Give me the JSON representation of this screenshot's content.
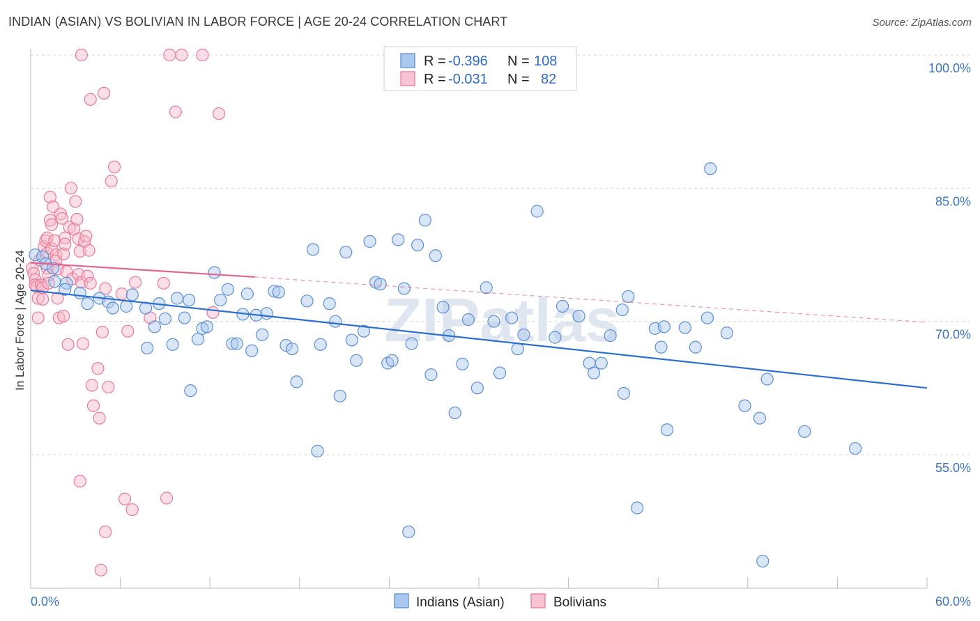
{
  "title": "INDIAN (ASIAN) VS BOLIVIAN IN LABOR FORCE | AGE 20-24 CORRELATION CHART",
  "source": "Source: ZipAtlas.com",
  "watermark": "ZIPatlas",
  "colors": {
    "blue_fill": "#aac8ee",
    "blue_stroke": "#5b8fd6",
    "blue_line": "#2a6fcf",
    "pink_fill": "#f6b8c8",
    "pink_stroke": "#e8799a",
    "pink_line": "#e2668f",
    "grid": "#d9d9d9",
    "tick_text": "#3a74c4"
  },
  "legend": {
    "rows": [
      {
        "r_label": "R =",
        "r_value": "-0.396",
        "n_label": "N =",
        "n_value": "108"
      },
      {
        "r_label": "R =",
        "r_value": "-0.031",
        "n_label": "N =",
        "n_value": "82"
      }
    ]
  },
  "bottom_legend": [
    "Indians (Asian)",
    "Bolivians"
  ],
  "chart_data": {
    "type": "scatter",
    "xlabel": "",
    "ylabel": "In Labor Force | Age 20-24",
    "xlim": [
      0,
      60
    ],
    "ylim": [
      40,
      103
    ],
    "x_tick_labels": [
      "0.0%",
      "60.0%"
    ],
    "y_ticks": [
      55,
      70,
      85,
      100
    ],
    "y_tick_labels": [
      "55.0%",
      "70.0%",
      "85.0%",
      "100.0%"
    ],
    "grid": true,
    "legend_position": "top-center",
    "series": [
      {
        "name": "Indians (Asian)",
        "color": "#5b8fd6",
        "trend": {
          "x": [
            0,
            60
          ],
          "y": [
            73.5,
            62.5
          ]
        },
        "points": [
          [
            0.3,
            77.5
          ],
          [
            0.8,
            77.3
          ],
          [
            1.0,
            76.5
          ],
          [
            1.5,
            76.0
          ],
          [
            1.6,
            74.5
          ],
          [
            2.4,
            74.3
          ],
          [
            2.3,
            73.6
          ],
          [
            3.3,
            73.2
          ],
          [
            3.8,
            72.0
          ],
          [
            4.6,
            72.6
          ],
          [
            5.2,
            72.2
          ],
          [
            6.4,
            71.7
          ],
          [
            5.5,
            71.5
          ],
          [
            6.8,
            73.0
          ],
          [
            7.7,
            71.5
          ],
          [
            8.6,
            72.0
          ],
          [
            7.8,
            67.0
          ],
          [
            8.3,
            69.4
          ],
          [
            9.0,
            70.3
          ],
          [
            9.5,
            67.4
          ],
          [
            9.8,
            72.6
          ],
          [
            10.3,
            70.4
          ],
          [
            10.6,
            72.4
          ],
          [
            10.7,
            62.2
          ],
          [
            11.2,
            68.0
          ],
          [
            11.5,
            69.2
          ],
          [
            11.8,
            69.4
          ],
          [
            12.3,
            75.5
          ],
          [
            12.7,
            72.4
          ],
          [
            13.2,
            73.6
          ],
          [
            13.5,
            67.5
          ],
          [
            13.8,
            67.5
          ],
          [
            14.2,
            70.8
          ],
          [
            14.5,
            73.1
          ],
          [
            14.8,
            66.7
          ],
          [
            15.1,
            70.7
          ],
          [
            15.5,
            68.5
          ],
          [
            15.8,
            70.9
          ],
          [
            16.3,
            73.4
          ],
          [
            16.6,
            73.3
          ],
          [
            17.1,
            67.3
          ],
          [
            17.5,
            66.9
          ],
          [
            17.8,
            63.2
          ],
          [
            18.5,
            72.3
          ],
          [
            18.9,
            78.1
          ],
          [
            19.2,
            55.4
          ],
          [
            19.4,
            67.4
          ],
          [
            20.0,
            72.0
          ],
          [
            20.4,
            70.0
          ],
          [
            20.7,
            61.6
          ],
          [
            21.1,
            77.8
          ],
          [
            21.5,
            67.9
          ],
          [
            21.8,
            65.6
          ],
          [
            22.3,
            68.9
          ],
          [
            22.7,
            79.0
          ],
          [
            23.1,
            74.4
          ],
          [
            23.4,
            74.2
          ],
          [
            23.9,
            65.3
          ],
          [
            24.2,
            65.6
          ],
          [
            24.6,
            79.2
          ],
          [
            25.0,
            73.7
          ],
          [
            25.5,
            67.5
          ],
          [
            25.9,
            78.6
          ],
          [
            25.3,
            46.3
          ],
          [
            26.4,
            81.4
          ],
          [
            26.8,
            64.0
          ],
          [
            27.1,
            77.4
          ],
          [
            27.6,
            71.6
          ],
          [
            28.0,
            68.4
          ],
          [
            28.4,
            59.7
          ],
          [
            28.9,
            65.2
          ],
          [
            29.3,
            70.2
          ],
          [
            29.9,
            62.5
          ],
          [
            30.5,
            73.8
          ],
          [
            31.0,
            70.0
          ],
          [
            31.4,
            64.2
          ],
          [
            32.2,
            70.4
          ],
          [
            32.6,
            66.9
          ],
          [
            33.0,
            68.5
          ],
          [
            33.9,
            82.4
          ],
          [
            35.1,
            68.2
          ],
          [
            35.6,
            71.7
          ],
          [
            36.7,
            70.6
          ],
          [
            37.4,
            65.3
          ],
          [
            37.7,
            64.2
          ],
          [
            38.2,
            65.3
          ],
          [
            38.8,
            68.4
          ],
          [
            39.6,
            71.3
          ],
          [
            39.7,
            61.9
          ],
          [
            40.0,
            72.8
          ],
          [
            40.6,
            49.0
          ],
          [
            41.8,
            69.2
          ],
          [
            42.2,
            67.1
          ],
          [
            42.4,
            69.4
          ],
          [
            42.6,
            57.8
          ],
          [
            43.8,
            69.3
          ],
          [
            44.5,
            67.1
          ],
          [
            45.3,
            70.4
          ],
          [
            45.5,
            87.2
          ],
          [
            46.6,
            68.7
          ],
          [
            47.8,
            60.5
          ],
          [
            48.8,
            59.1
          ],
          [
            49.3,
            63.5
          ],
          [
            51.8,
            57.6
          ],
          [
            55.2,
            55.7
          ],
          [
            49.0,
            43.0
          ]
        ]
      },
      {
        "name": "Bolivians",
        "color": "#e8799a",
        "trend": {
          "x": [
            0,
            15
          ],
          "y": [
            76.6,
            75.0
          ],
          "dash_x": [
            15,
            60
          ],
          "dash_y": [
            75.0,
            69.9
          ]
        },
        "points": [
          [
            0.1,
            76.0
          ],
          [
            0.2,
            75.4
          ],
          [
            0.3,
            74.7
          ],
          [
            0.3,
            74.1
          ],
          [
            0.4,
            73.9
          ],
          [
            0.5,
            72.6
          ],
          [
            0.5,
            70.4
          ],
          [
            0.6,
            76.9
          ],
          [
            0.7,
            74.1
          ],
          [
            0.8,
            73.8
          ],
          [
            0.8,
            72.5
          ],
          [
            0.9,
            78.4
          ],
          [
            1.0,
            79.1
          ],
          [
            1.1,
            79.4
          ],
          [
            1.1,
            77.7
          ],
          [
            1.1,
            76.0
          ],
          [
            1.2,
            75.2
          ],
          [
            1.2,
            74.3
          ],
          [
            1.3,
            84.0
          ],
          [
            1.3,
            81.4
          ],
          [
            1.4,
            80.9
          ],
          [
            1.4,
            78.2
          ],
          [
            1.5,
            82.9
          ],
          [
            1.6,
            79.1
          ],
          [
            1.7,
            77.5
          ],
          [
            1.7,
            76.8
          ],
          [
            1.8,
            75.9
          ],
          [
            1.8,
            72.6
          ],
          [
            1.9,
            70.4
          ],
          [
            2.0,
            82.1
          ],
          [
            2.1,
            81.6
          ],
          [
            2.2,
            77.6
          ],
          [
            2.2,
            70.6
          ],
          [
            2.3,
            79.4
          ],
          [
            2.3,
            78.7
          ],
          [
            2.4,
            75.6
          ],
          [
            2.5,
            67.4
          ],
          [
            2.6,
            80.6
          ],
          [
            2.7,
            85.0
          ],
          [
            2.8,
            74.8
          ],
          [
            2.9,
            80.4
          ],
          [
            3.0,
            83.5
          ],
          [
            3.1,
            81.5
          ],
          [
            3.2,
            79.3
          ],
          [
            3.2,
            75.3
          ],
          [
            3.3,
            77.9
          ],
          [
            3.4,
            74.4
          ],
          [
            3.5,
            67.5
          ],
          [
            3.6,
            79.0
          ],
          [
            3.7,
            79.6
          ],
          [
            3.8,
            75.1
          ],
          [
            3.9,
            78.0
          ],
          [
            4.0,
            74.3
          ],
          [
            4.1,
            62.8
          ],
          [
            4.2,
            60.5
          ],
          [
            4.5,
            64.7
          ],
          [
            4.6,
            59.1
          ],
          [
            4.8,
            68.8
          ],
          [
            5.0,
            73.7
          ],
          [
            5.2,
            62.6
          ],
          [
            5.4,
            85.8
          ],
          [
            5.6,
            87.4
          ],
          [
            6.1,
            73.1
          ],
          [
            6.3,
            50.0
          ],
          [
            6.5,
            68.9
          ],
          [
            6.8,
            48.8
          ],
          [
            7.0,
            74.4
          ],
          [
            8.0,
            70.4
          ],
          [
            8.9,
            74.3
          ],
          [
            9.1,
            50.1
          ],
          [
            9.3,
            100.0
          ],
          [
            9.7,
            93.6
          ],
          [
            10.1,
            100.0
          ],
          [
            11.5,
            100.0
          ],
          [
            12.2,
            71.0
          ],
          [
            12.6,
            93.4
          ],
          [
            3.3,
            52.0
          ],
          [
            5.0,
            46.3
          ],
          [
            4.7,
            42.0
          ],
          [
            3.4,
            100.0
          ],
          [
            4.9,
            95.7
          ],
          [
            4.0,
            95.0
          ]
        ]
      }
    ]
  }
}
